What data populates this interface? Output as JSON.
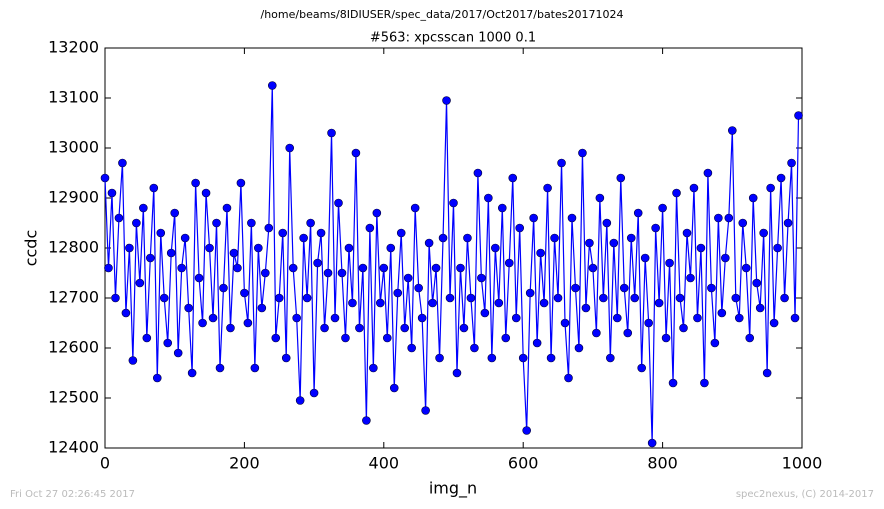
{
  "chart_data": {
    "type": "line",
    "suptitle": "/home/beams/8IDIUSER/spec_data/2017/Oct2017/bates20171024",
    "title": "#563: xpcsscan 1000 0.1",
    "xlabel": "img_n",
    "ylabel": "ccdc",
    "footer_left": "Fri Oct 27 02:26:45 2017",
    "footer_right": "spec2nexus, (C) 2014-2017",
    "xlim": [
      0,
      1000
    ],
    "xticks": [
      0,
      200,
      400,
      600,
      800,
      1000
    ],
    "ylim": [
      12400,
      13200
    ],
    "yticks": [
      12400,
      12500,
      12600,
      12700,
      12800,
      12900,
      13000,
      13100,
      13200
    ],
    "grid": false,
    "marker": "circle",
    "x": [
      0,
      5,
      10,
      15,
      20,
      25,
      30,
      35,
      40,
      45,
      50,
      55,
      60,
      65,
      70,
      75,
      80,
      85,
      90,
      95,
      100,
      105,
      110,
      115,
      120,
      125,
      130,
      135,
      140,
      145,
      150,
      155,
      160,
      165,
      170,
      175,
      180,
      185,
      190,
      195,
      200,
      205,
      210,
      215,
      220,
      225,
      230,
      235,
      240,
      245,
      250,
      255,
      260,
      265,
      270,
      275,
      280,
      285,
      290,
      295,
      300,
      305,
      310,
      315,
      320,
      325,
      330,
      335,
      340,
      345,
      350,
      355,
      360,
      365,
      370,
      375,
      380,
      385,
      390,
      395,
      400,
      405,
      410,
      415,
      420,
      425,
      430,
      435,
      440,
      445,
      450,
      455,
      460,
      465,
      470,
      475,
      480,
      485,
      490,
      495,
      500,
      505,
      510,
      515,
      520,
      525,
      530,
      535,
      540,
      545,
      550,
      555,
      560,
      565,
      570,
      575,
      580,
      585,
      590,
      595,
      600,
      605,
      610,
      615,
      620,
      625,
      630,
      635,
      640,
      645,
      650,
      655,
      660,
      665,
      670,
      675,
      680,
      685,
      690,
      695,
      700,
      705,
      710,
      715,
      720,
      725,
      730,
      735,
      740,
      745,
      750,
      755,
      760,
      765,
      770,
      775,
      780,
      785,
      790,
      795,
      800,
      805,
      810,
      815,
      820,
      825,
      830,
      835,
      840,
      845,
      850,
      855,
      860,
      865,
      870,
      875,
      880,
      885,
      890,
      895,
      900,
      905,
      910,
      915,
      920,
      925,
      930,
      935,
      940,
      945,
      950,
      955,
      960,
      965,
      970,
      975,
      980,
      985,
      990,
      995
    ],
    "series": [
      {
        "name": "ccdc",
        "color": "#0000ff",
        "values": [
          12940,
          12760,
          12910,
          12700,
          12860,
          12970,
          12670,
          12800,
          12575,
          12850,
          12730,
          12880,
          12620,
          12780,
          12920,
          12540,
          12830,
          12700,
          12610,
          12790,
          12870,
          12590,
          12760,
          12820,
          12680,
          12550,
          12930,
          12740,
          12650,
          12910,
          12800,
          12660,
          12850,
          12560,
          12720,
          12880,
          12640,
          12790,
          12760,
          12930,
          12710,
          12650,
          12850,
          12560,
          12800,
          12680,
          12750,
          12840,
          13125,
          12620,
          12700,
          12830,
          12580,
          13000,
          12760,
          12660,
          12495,
          12820,
          12700,
          12850,
          12510,
          12770,
          12830,
          12640,
          12750,
          13030,
          12660,
          12890,
          12750,
          12620,
          12800,
          12690,
          12990,
          12640,
          12760,
          12455,
          12840,
          12560,
          12870,
          12690,
          12760,
          12620,
          12800,
          12520,
          12710,
          12830,
          12640,
          12740,
          12600,
          12880,
          12720,
          12660,
          12475,
          12810,
          12690,
          12760,
          12580,
          12820,
          13095,
          12700,
          12890,
          12550,
          12760,
          12640,
          12820,
          12700,
          12600,
          12950,
          12740,
          12670,
          12900,
          12580,
          12800,
          12690,
          12880,
          12620,
          12770,
          12940,
          12660,
          12840,
          12580,
          12435,
          12710,
          12860,
          12610,
          12790,
          12690,
          12920,
          12580,
          12820,
          12700,
          12970,
          12650,
          12540,
          12860,
          12720,
          12600,
          12990,
          12680,
          12810,
          12760,
          12630,
          12900,
          12700,
          12850,
          12580,
          12810,
          12660,
          12940,
          12720,
          12630,
          12820,
          12700,
          12870,
          12560,
          12780,
          12650,
          12410,
          12840,
          12690,
          12880,
          12620,
          12770,
          12530,
          12910,
          12700,
          12640,
          12830,
          12740,
          12920,
          12660,
          12800,
          12530,
          12950,
          12720,
          12610,
          12860,
          12670,
          12780,
          12860,
          13035,
          12700,
          12660,
          12850,
          12760,
          12620,
          12900,
          12730,
          12680,
          12830,
          12550,
          12920,
          12650,
          12800,
          12940,
          12700,
          12850,
          12970,
          12660,
          13065
        ]
      }
    ]
  }
}
